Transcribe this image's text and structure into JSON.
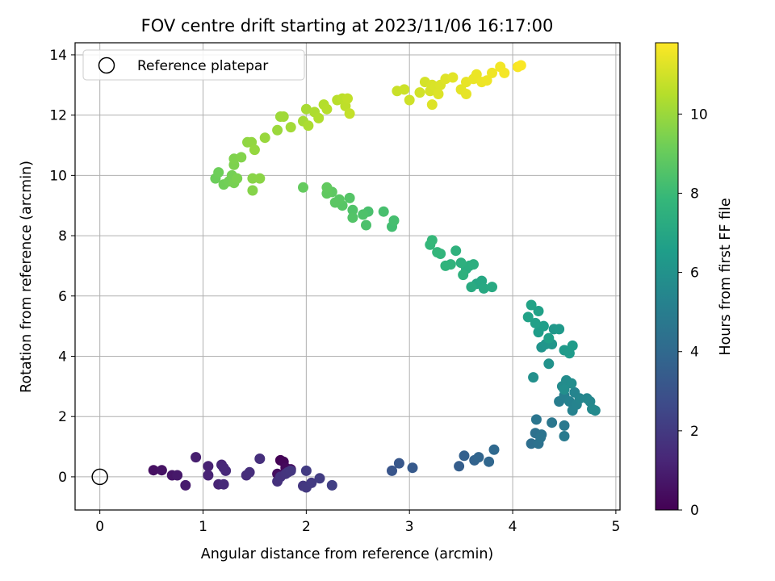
{
  "chart_data": {
    "type": "scatter",
    "title": "FOV centre drift starting at 2023/11/06 16:17:00",
    "xlabel": "Angular distance from reference (arcmin)",
    "ylabel": "Rotation from reference (arcmin)",
    "xlim": [
      -0.24,
      5.04
    ],
    "ylim": [
      -1.1,
      14.4
    ],
    "xticks": [
      0,
      1,
      2,
      3,
      4,
      5
    ],
    "yticks": [
      0,
      2,
      4,
      6,
      8,
      10,
      12,
      14
    ],
    "grid": true,
    "legend": {
      "position": "top-left",
      "entries": [
        "Reference platepar"
      ]
    },
    "reference_point": {
      "x": 0,
      "y": 0,
      "label": "Reference platepar"
    },
    "colorbar": {
      "label": "Hours from first FF file",
      "range": [
        0,
        11.8
      ],
      "ticks": [
        0,
        2,
        4,
        6,
        8,
        10
      ],
      "colormap": "viridis",
      "stops": [
        "#440154",
        "#482878",
        "#3e4a89",
        "#31688e",
        "#26828e",
        "#1f9e89",
        "#35b779",
        "#6ece58",
        "#b5de2b",
        "#fde725"
      ]
    },
    "points": [
      {
        "x": 1.75,
        "y": 0.55,
        "c": 0.05
      },
      {
        "x": 1.78,
        "y": 0.5,
        "c": 0.15
      },
      {
        "x": 1.8,
        "y": 0.3,
        "c": 0.25
      },
      {
        "x": 1.85,
        "y": 0.25,
        "c": 0.35
      },
      {
        "x": 1.72,
        "y": 0.1,
        "c": 0.45
      },
      {
        "x": 0.52,
        "y": 0.22,
        "c": 0.5
      },
      {
        "x": 0.6,
        "y": 0.22,
        "c": 0.6
      },
      {
        "x": 0.7,
        "y": 0.05,
        "c": 0.7
      },
      {
        "x": 0.75,
        "y": 0.05,
        "c": 0.8
      },
      {
        "x": 0.83,
        "y": -0.28,
        "c": 0.9
      },
      {
        "x": 0.93,
        "y": 0.65,
        "c": 1.0
      },
      {
        "x": 1.05,
        "y": 0.35,
        "c": 1.1
      },
      {
        "x": 1.05,
        "y": 0.05,
        "c": 1.15
      },
      {
        "x": 1.15,
        "y": -0.25,
        "c": 1.2
      },
      {
        "x": 1.18,
        "y": 0.4,
        "c": 1.25
      },
      {
        "x": 1.2,
        "y": 0.3,
        "c": 1.3
      },
      {
        "x": 1.22,
        "y": 0.2,
        "c": 1.35
      },
      {
        "x": 1.2,
        "y": -0.25,
        "c": 1.4
      },
      {
        "x": 1.42,
        "y": 0.05,
        "c": 1.5
      },
      {
        "x": 1.45,
        "y": 0.15,
        "c": 1.55
      },
      {
        "x": 1.55,
        "y": 0.6,
        "c": 1.6
      },
      {
        "x": 1.72,
        "y": -0.15,
        "c": 1.65
      },
      {
        "x": 1.75,
        "y": 0.0,
        "c": 1.7
      },
      {
        "x": 1.8,
        "y": 0.1,
        "c": 1.75
      },
      {
        "x": 1.82,
        "y": 0.15,
        "c": 1.8
      },
      {
        "x": 1.85,
        "y": 0.2,
        "c": 1.85
      },
      {
        "x": 1.97,
        "y": -0.3,
        "c": 1.9
      },
      {
        "x": 2.0,
        "y": -0.35,
        "c": 1.95
      },
      {
        "x": 2.05,
        "y": -0.2,
        "c": 2.0
      },
      {
        "x": 2.0,
        "y": 0.2,
        "c": 2.05
      },
      {
        "x": 2.13,
        "y": -0.05,
        "c": 2.1
      },
      {
        "x": 2.25,
        "y": -0.28,
        "c": 2.2
      },
      {
        "x": 2.83,
        "y": 0.2,
        "c": 3.1
      },
      {
        "x": 2.9,
        "y": 0.45,
        "c": 3.2
      },
      {
        "x": 3.03,
        "y": 0.3,
        "c": 3.3
      },
      {
        "x": 3.48,
        "y": 0.35,
        "c": 3.5
      },
      {
        "x": 3.53,
        "y": 0.7,
        "c": 3.6
      },
      {
        "x": 3.63,
        "y": 0.55,
        "c": 3.7
      },
      {
        "x": 3.67,
        "y": 0.65,
        "c": 3.8
      },
      {
        "x": 3.77,
        "y": 0.5,
        "c": 3.9
      },
      {
        "x": 3.82,
        "y": 0.9,
        "c": 4.0
      },
      {
        "x": 4.18,
        "y": 1.1,
        "c": 4.3
      },
      {
        "x": 4.22,
        "y": 1.45,
        "c": 4.4
      },
      {
        "x": 4.25,
        "y": 1.1,
        "c": 4.45
      },
      {
        "x": 4.28,
        "y": 1.4,
        "c": 4.5
      },
      {
        "x": 4.27,
        "y": 1.3,
        "c": 4.55
      },
      {
        "x": 4.23,
        "y": 1.9,
        "c": 4.6
      },
      {
        "x": 4.38,
        "y": 1.8,
        "c": 4.7
      },
      {
        "x": 4.5,
        "y": 1.7,
        "c": 4.8
      },
      {
        "x": 4.5,
        "y": 1.35,
        "c": 4.85
      },
      {
        "x": 4.45,
        "y": 2.5,
        "c": 5.0
      },
      {
        "x": 4.5,
        "y": 2.7,
        "c": 5.1
      },
      {
        "x": 4.55,
        "y": 2.5,
        "c": 5.2
      },
      {
        "x": 4.58,
        "y": 2.2,
        "c": 5.25
      },
      {
        "x": 4.62,
        "y": 2.4,
        "c": 5.3
      },
      {
        "x": 4.6,
        "y": 2.8,
        "c": 5.35
      },
      {
        "x": 4.65,
        "y": 2.6,
        "c": 5.4
      },
      {
        "x": 4.72,
        "y": 2.6,
        "c": 5.45
      },
      {
        "x": 4.75,
        "y": 2.5,
        "c": 5.5
      },
      {
        "x": 4.77,
        "y": 2.25,
        "c": 5.55
      },
      {
        "x": 4.8,
        "y": 2.2,
        "c": 5.6
      },
      {
        "x": 4.48,
        "y": 3.0,
        "c": 5.65
      },
      {
        "x": 4.52,
        "y": 3.2,
        "c": 5.7
      },
      {
        "x": 4.57,
        "y": 3.1,
        "c": 5.75
      },
      {
        "x": 4.5,
        "y": 2.9,
        "c": 5.8
      },
      {
        "x": 4.2,
        "y": 3.3,
        "c": 5.9
      },
      {
        "x": 4.35,
        "y": 3.75,
        "c": 6.0
      },
      {
        "x": 4.28,
        "y": 4.3,
        "c": 6.1
      },
      {
        "x": 4.32,
        "y": 4.4,
        "c": 6.15
      },
      {
        "x": 4.38,
        "y": 4.4,
        "c": 6.2
      },
      {
        "x": 4.4,
        "y": 4.9,
        "c": 6.25
      },
      {
        "x": 4.45,
        "y": 4.9,
        "c": 6.3
      },
      {
        "x": 4.5,
        "y": 4.2,
        "c": 6.35
      },
      {
        "x": 4.55,
        "y": 4.1,
        "c": 6.4
      },
      {
        "x": 4.58,
        "y": 4.35,
        "c": 6.45
      },
      {
        "x": 4.25,
        "y": 4.8,
        "c": 6.5
      },
      {
        "x": 4.3,
        "y": 5.0,
        "c": 6.55
      },
      {
        "x": 4.35,
        "y": 4.6,
        "c": 6.6
      },
      {
        "x": 4.22,
        "y": 5.1,
        "c": 6.65
      },
      {
        "x": 4.25,
        "y": 5.5,
        "c": 6.7
      },
      {
        "x": 4.15,
        "y": 5.3,
        "c": 6.75
      },
      {
        "x": 4.18,
        "y": 5.7,
        "c": 6.8
      },
      {
        "x": 3.65,
        "y": 6.4,
        "c": 7.0
      },
      {
        "x": 3.7,
        "y": 6.5,
        "c": 7.05
      },
      {
        "x": 3.72,
        "y": 6.25,
        "c": 7.1
      },
      {
        "x": 3.8,
        "y": 6.3,
        "c": 7.15
      },
      {
        "x": 3.6,
        "y": 6.3,
        "c": 7.2
      },
      {
        "x": 3.55,
        "y": 6.9,
        "c": 7.3
      },
      {
        "x": 3.58,
        "y": 7.0,
        "c": 7.35
      },
      {
        "x": 3.62,
        "y": 7.05,
        "c": 7.4
      },
      {
        "x": 3.5,
        "y": 7.1,
        "c": 7.45
      },
      {
        "x": 3.52,
        "y": 6.7,
        "c": 7.5
      },
      {
        "x": 3.45,
        "y": 7.5,
        "c": 7.55
      },
      {
        "x": 3.4,
        "y": 7.05,
        "c": 7.6
      },
      {
        "x": 3.35,
        "y": 7.0,
        "c": 7.65
      },
      {
        "x": 3.3,
        "y": 7.4,
        "c": 7.7
      },
      {
        "x": 3.27,
        "y": 7.45,
        "c": 7.75
      },
      {
        "x": 3.2,
        "y": 7.7,
        "c": 7.8
      },
      {
        "x": 3.22,
        "y": 7.85,
        "c": 7.85
      },
      {
        "x": 2.83,
        "y": 8.3,
        "c": 8.2
      },
      {
        "x": 2.85,
        "y": 8.5,
        "c": 8.25
      },
      {
        "x": 2.75,
        "y": 8.8,
        "c": 8.3
      },
      {
        "x": 2.6,
        "y": 8.8,
        "c": 8.35
      },
      {
        "x": 2.58,
        "y": 8.35,
        "c": 8.4
      },
      {
        "x": 2.55,
        "y": 8.7,
        "c": 8.45
      },
      {
        "x": 2.45,
        "y": 8.85,
        "c": 8.5
      },
      {
        "x": 2.45,
        "y": 8.6,
        "c": 8.55
      },
      {
        "x": 2.42,
        "y": 9.25,
        "c": 8.6
      },
      {
        "x": 2.35,
        "y": 9.0,
        "c": 8.65
      },
      {
        "x": 2.32,
        "y": 9.2,
        "c": 8.7
      },
      {
        "x": 2.28,
        "y": 9.1,
        "c": 8.75
      },
      {
        "x": 2.25,
        "y": 9.45,
        "c": 8.8
      },
      {
        "x": 2.2,
        "y": 9.4,
        "c": 8.85
      },
      {
        "x": 2.2,
        "y": 9.6,
        "c": 8.9
      },
      {
        "x": 1.97,
        "y": 9.6,
        "c": 8.95
      },
      {
        "x": 1.12,
        "y": 9.9,
        "c": 9.1
      },
      {
        "x": 1.15,
        "y": 10.1,
        "c": 9.15
      },
      {
        "x": 1.2,
        "y": 9.7,
        "c": 9.2
      },
      {
        "x": 1.25,
        "y": 9.8,
        "c": 9.25
      },
      {
        "x": 1.28,
        "y": 10.0,
        "c": 9.3
      },
      {
        "x": 1.3,
        "y": 9.75,
        "c": 9.35
      },
      {
        "x": 1.33,
        "y": 9.9,
        "c": 9.4
      },
      {
        "x": 1.3,
        "y": 10.35,
        "c": 9.45
      },
      {
        "x": 1.3,
        "y": 10.55,
        "c": 9.5
      },
      {
        "x": 1.37,
        "y": 10.6,
        "c": 9.55
      },
      {
        "x": 1.48,
        "y": 9.5,
        "c": 9.6
      },
      {
        "x": 1.48,
        "y": 9.9,
        "c": 9.65
      },
      {
        "x": 1.55,
        "y": 9.9,
        "c": 9.7
      },
      {
        "x": 1.43,
        "y": 11.1,
        "c": 9.8
      },
      {
        "x": 1.47,
        "y": 11.1,
        "c": 9.85
      },
      {
        "x": 1.5,
        "y": 10.85,
        "c": 9.9
      },
      {
        "x": 1.6,
        "y": 11.25,
        "c": 9.95
      },
      {
        "x": 1.72,
        "y": 11.5,
        "c": 10.0
      },
      {
        "x": 1.75,
        "y": 11.95,
        "c": 10.05
      },
      {
        "x": 1.78,
        "y": 11.95,
        "c": 10.1
      },
      {
        "x": 1.85,
        "y": 11.6,
        "c": 10.15
      },
      {
        "x": 1.97,
        "y": 11.8,
        "c": 10.2
      },
      {
        "x": 2.0,
        "y": 12.2,
        "c": 10.25
      },
      {
        "x": 2.02,
        "y": 11.65,
        "c": 10.3
      },
      {
        "x": 2.08,
        "y": 12.1,
        "c": 10.35
      },
      {
        "x": 2.12,
        "y": 11.9,
        "c": 10.4
      },
      {
        "x": 2.17,
        "y": 12.35,
        "c": 10.45
      },
      {
        "x": 2.2,
        "y": 12.2,
        "c": 10.5
      },
      {
        "x": 2.3,
        "y": 12.5,
        "c": 10.55
      },
      {
        "x": 2.35,
        "y": 12.55,
        "c": 10.6
      },
      {
        "x": 2.38,
        "y": 12.3,
        "c": 10.65
      },
      {
        "x": 2.4,
        "y": 12.55,
        "c": 10.7
      },
      {
        "x": 2.42,
        "y": 12.05,
        "c": 10.75
      },
      {
        "x": 2.88,
        "y": 12.8,
        "c": 10.85
      },
      {
        "x": 2.95,
        "y": 12.85,
        "c": 10.9
      },
      {
        "x": 3.0,
        "y": 12.5,
        "c": 10.95
      },
      {
        "x": 3.1,
        "y": 12.75,
        "c": 11.0
      },
      {
        "x": 3.15,
        "y": 13.1,
        "c": 11.05
      },
      {
        "x": 3.2,
        "y": 12.8,
        "c": 11.1
      },
      {
        "x": 3.22,
        "y": 13.0,
        "c": 11.12
      },
      {
        "x": 3.25,
        "y": 12.95,
        "c": 11.15
      },
      {
        "x": 3.3,
        "y": 13.0,
        "c": 11.18
      },
      {
        "x": 3.28,
        "y": 12.7,
        "c": 11.2
      },
      {
        "x": 3.22,
        "y": 12.35,
        "c": 11.22
      },
      {
        "x": 3.35,
        "y": 13.2,
        "c": 11.25
      },
      {
        "x": 3.42,
        "y": 13.25,
        "c": 11.3
      },
      {
        "x": 3.5,
        "y": 12.85,
        "c": 11.35
      },
      {
        "x": 3.55,
        "y": 12.7,
        "c": 11.38
      },
      {
        "x": 3.55,
        "y": 13.1,
        "c": 11.4
      },
      {
        "x": 3.62,
        "y": 13.2,
        "c": 11.45
      },
      {
        "x": 3.65,
        "y": 13.35,
        "c": 11.48
      },
      {
        "x": 3.7,
        "y": 13.1,
        "c": 11.5
      },
      {
        "x": 3.75,
        "y": 13.15,
        "c": 11.52
      },
      {
        "x": 3.8,
        "y": 13.4,
        "c": 11.55
      },
      {
        "x": 3.88,
        "y": 13.6,
        "c": 11.6
      },
      {
        "x": 3.92,
        "y": 13.4,
        "c": 11.63
      },
      {
        "x": 4.05,
        "y": 13.6,
        "c": 11.7
      },
      {
        "x": 4.08,
        "y": 13.65,
        "c": 11.75
      }
    ]
  }
}
